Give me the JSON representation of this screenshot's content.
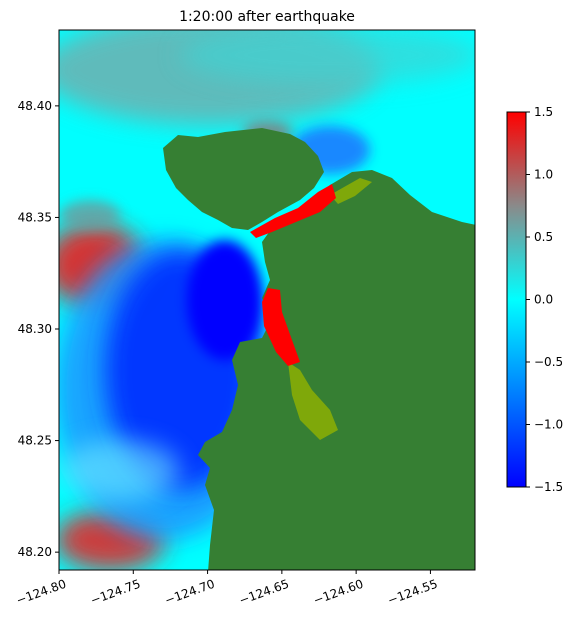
{
  "chart_data": {
    "type": "heatmap",
    "title": "1:20:00 after earthquake",
    "xlabel": "",
    "ylabel": "",
    "xlim": [
      -124.8,
      -124.52
    ],
    "ylim": [
      48.192,
      48.434
    ],
    "xticks": [
      -124.8,
      -124.75,
      -124.7,
      -124.65,
      -124.6,
      -124.55
    ],
    "xtick_labels": [
      "−124.80",
      "−124.75",
      "−124.70",
      "−124.65",
      "−124.60",
      "−124.55"
    ],
    "yticks": [
      48.2,
      48.25,
      48.3,
      48.35,
      48.4
    ],
    "ytick_labels": [
      "48.20",
      "48.25",
      "48.30",
      "48.35",
      "48.40"
    ],
    "colorbar": {
      "range": [
        -1.5,
        1.5
      ],
      "ticks": [
        1.5,
        1.0,
        0.5,
        0.0,
        -0.5,
        -1.0,
        -1.5
      ],
      "tick_labels": [
        "1.5",
        "1.0",
        "0.5",
        "0.0",
        "−0.5",
        "−1.0",
        "−1.5"
      ],
      "stops": [
        {
          "value": 1.5,
          "color": "#ff0000"
        },
        {
          "value": 0.75,
          "color": "#8a8a8a"
        },
        {
          "value": 0.0,
          "color": "#00ffff"
        },
        {
          "value": -1.5,
          "color": "#0000ff"
        }
      ]
    },
    "colors": {
      "land": "#367f33",
      "shallow_land": "#7fa80a"
    },
    "grid": false
  }
}
